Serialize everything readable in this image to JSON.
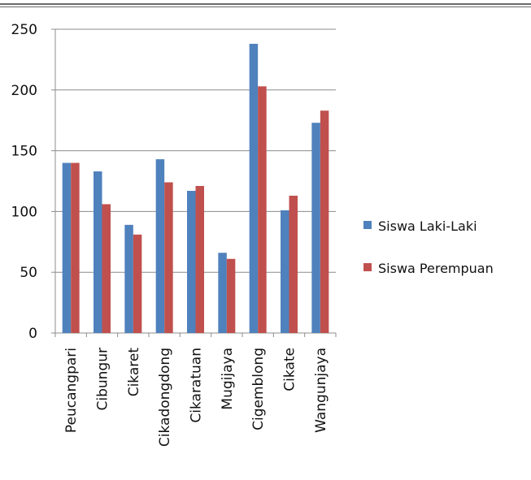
{
  "chart_data": {
    "type": "bar",
    "categories": [
      "Peucangpari",
      "Cibungur",
      "Cikaret",
      "Cikadongdong",
      "Cikaratuan",
      "Mugijaya",
      "Cigemblong",
      "Cikate",
      "Wangunjaya"
    ],
    "series": [
      {
        "name": "Siswa Laki-Laki",
        "color": "#4f81bd",
        "values": [
          140,
          133,
          89,
          143,
          117,
          66,
          238,
          101,
          173
        ]
      },
      {
        "name": "Siswa Perempuan",
        "color": "#c0504d",
        "values": [
          140,
          106,
          81,
          124,
          121,
          61,
          203,
          113,
          183
        ]
      }
    ],
    "title": "",
    "xlabel": "",
    "ylabel": "",
    "ylim": [
      0,
      250
    ],
    "yticks": [
      0,
      50,
      100,
      150,
      200,
      250
    ],
    "grid": true,
    "legend": "right"
  }
}
